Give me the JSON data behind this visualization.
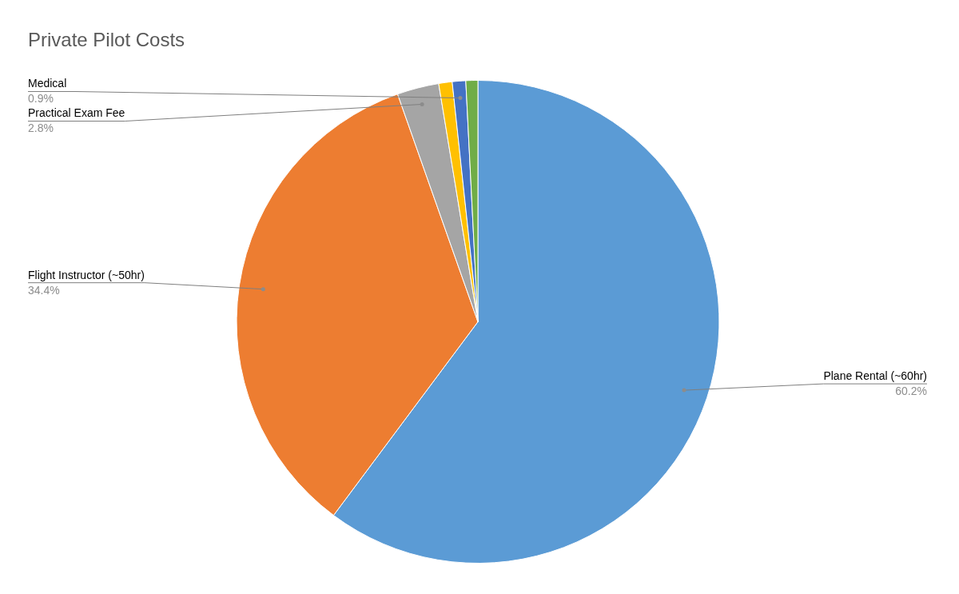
{
  "chart_data": {
    "type": "pie",
    "title": "Private Pilot Costs",
    "categories": [
      "Plane Rental (~60hr)",
      "Flight Instructor (~50hr)",
      "Practical Exam Fee",
      null,
      "Medical",
      null
    ],
    "values": [
      60.2,
      34.4,
      2.8,
      0.9,
      0.9,
      0.8
    ],
    "colors": [
      "#5b9bd5",
      "#ed7d31",
      "#a5a5a5",
      "#ffc000",
      "#4472c4",
      "#70ad47"
    ],
    "value_labels": [
      "60.2%",
      "34.4%",
      "2.8%",
      null,
      "0.9%",
      null
    ]
  }
}
